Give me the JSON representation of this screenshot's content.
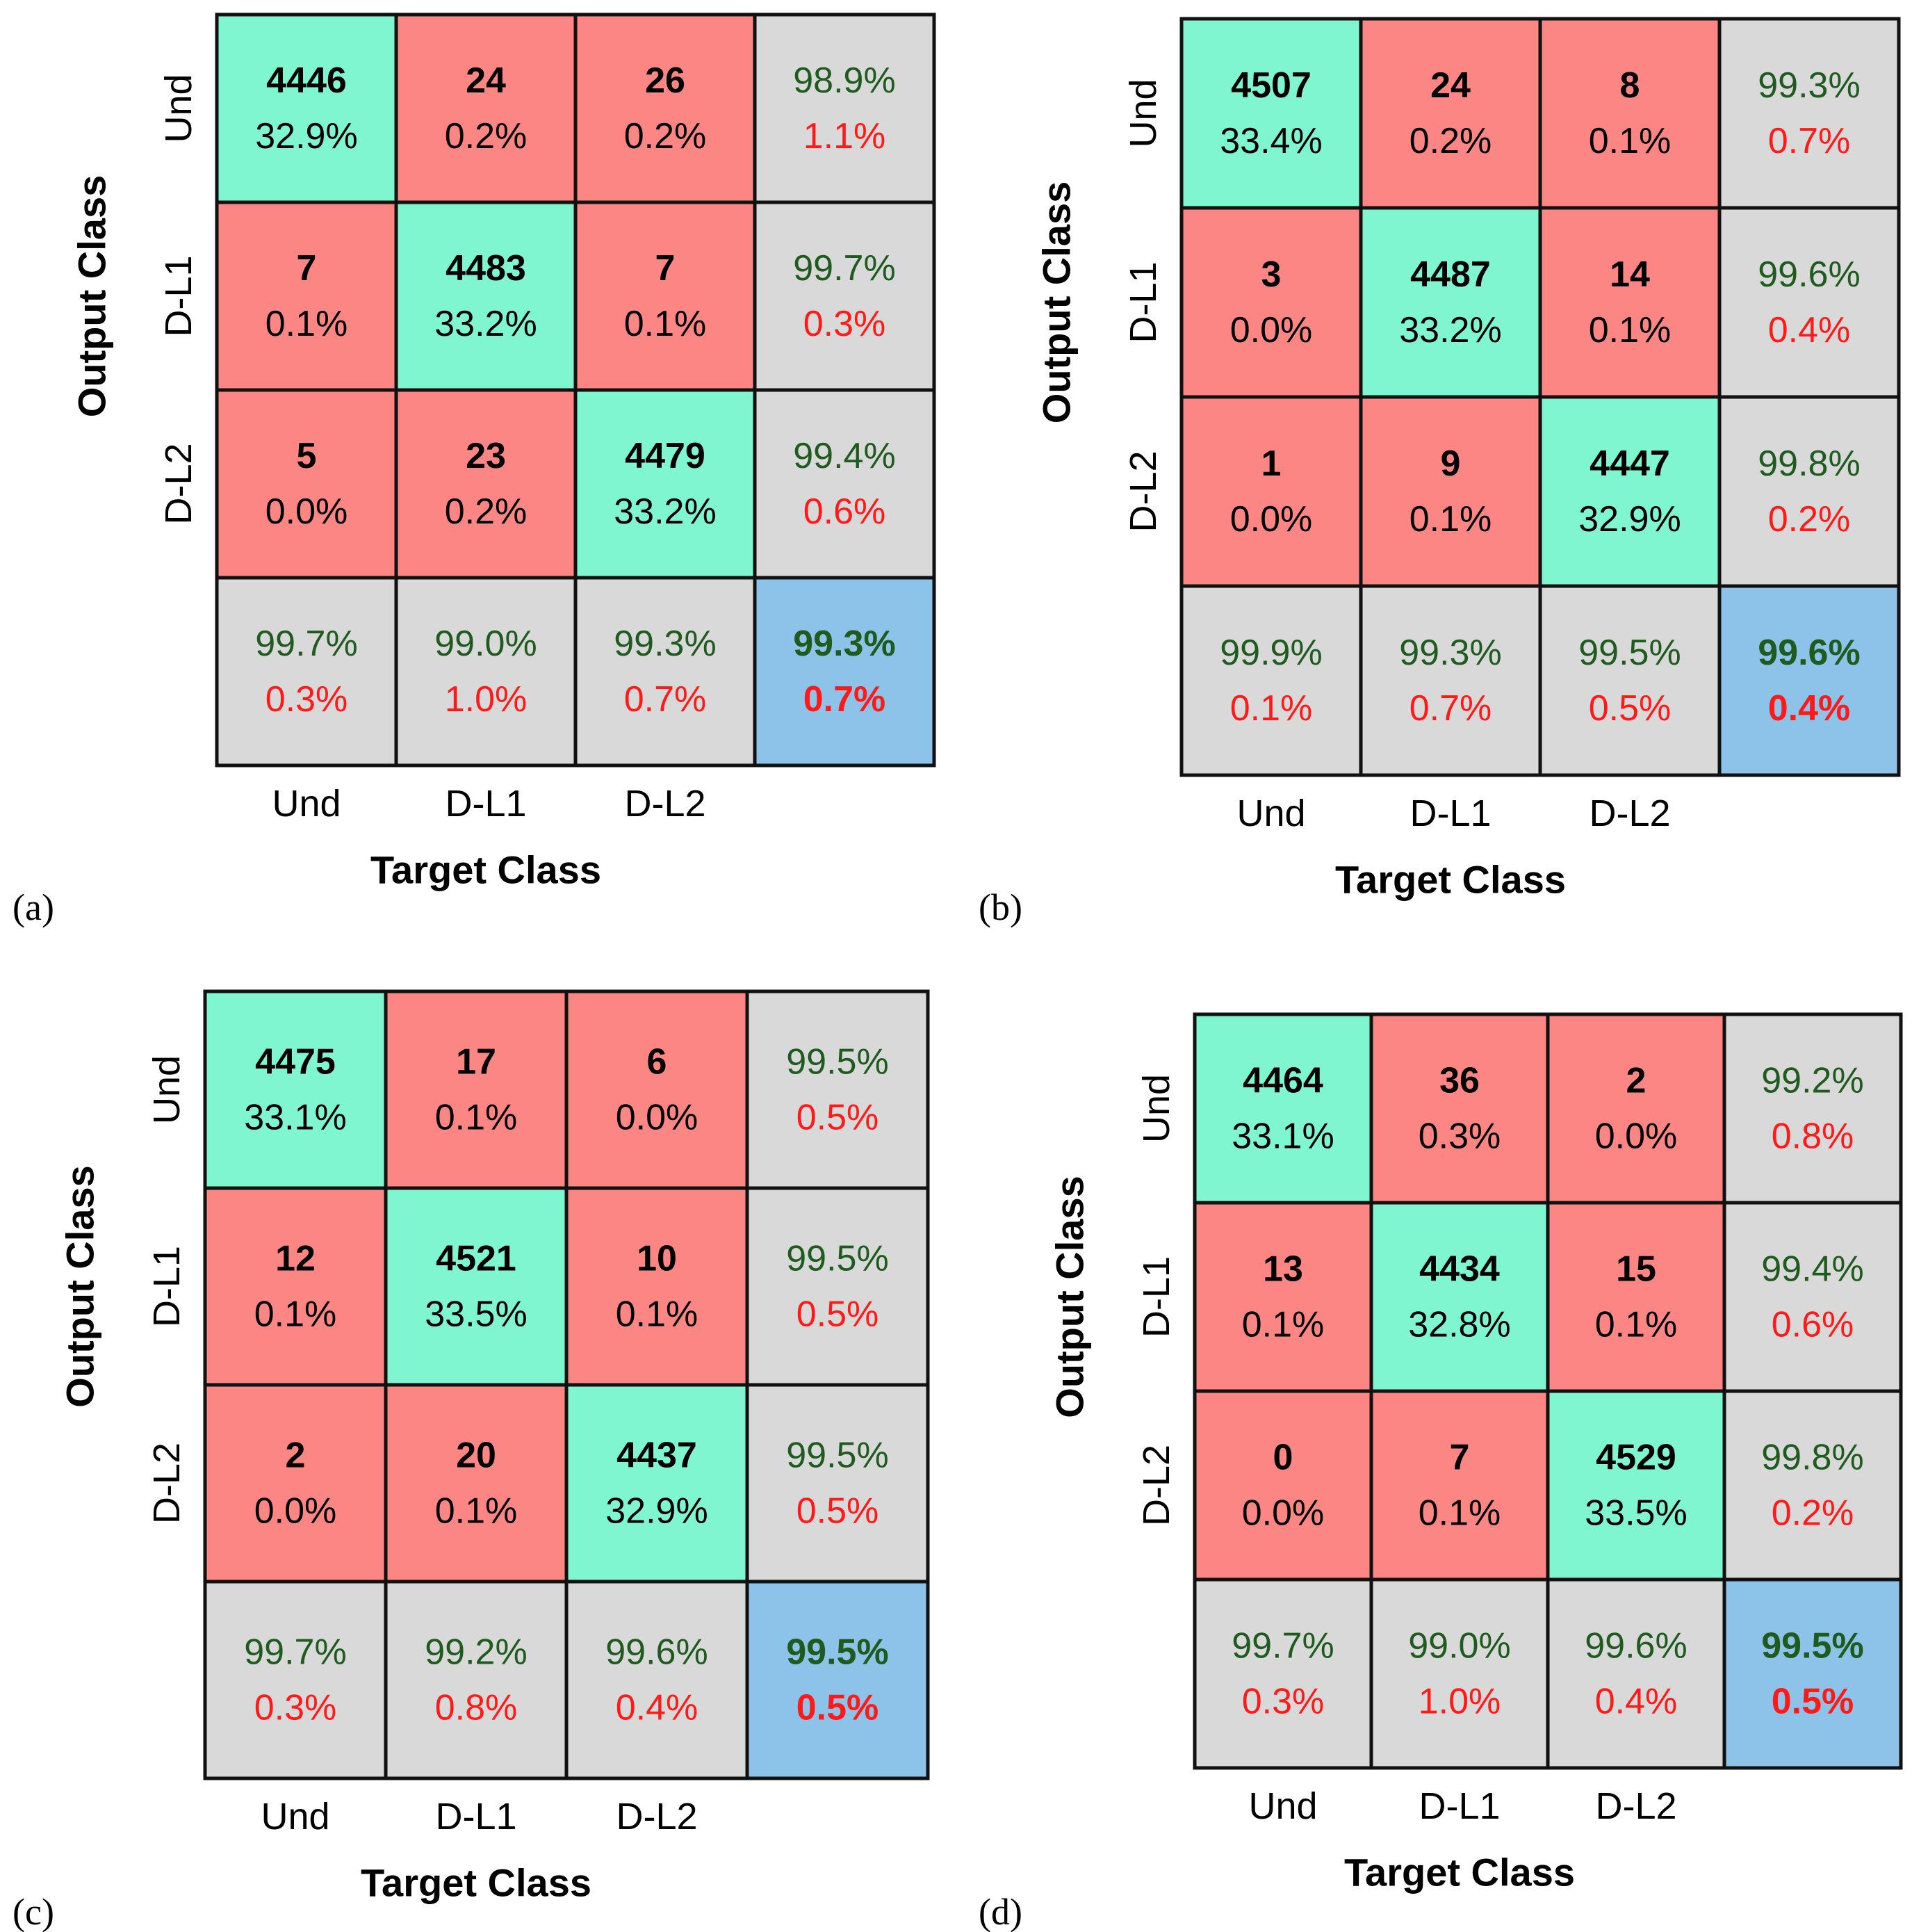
{
  "colors": {
    "correct": "#7FF6CF",
    "error": "#FB8683",
    "summary": "#D9D9D9",
    "overall": "#8DC3E8",
    "good_text": "#1F5A1F",
    "bad_text": "#FF1A1A",
    "count_text": "#000000",
    "grid": "#111111"
  },
  "chart_data": [
    {
      "type": "table",
      "label": "(a)",
      "title": "",
      "xlabel": "Target Class",
      "ylabel": "Output Class",
      "classes": [
        "Und",
        "D-L1",
        "D-L2"
      ],
      "counts": [
        [
          4446,
          24,
          26
        ],
        [
          7,
          4483,
          7
        ],
        [
          5,
          23,
          4479
        ]
      ],
      "cell_pct": [
        [
          "32.9%",
          "0.2%",
          "0.2%"
        ],
        [
          "0.1%",
          "33.2%",
          "0.1%"
        ],
        [
          "0.0%",
          "0.2%",
          "33.2%"
        ]
      ],
      "row_summary": [
        [
          "98.9%",
          "1.1%"
        ],
        [
          "99.7%",
          "0.3%"
        ],
        [
          "99.4%",
          "0.6%"
        ]
      ],
      "col_summary": [
        [
          "99.7%",
          "0.3%"
        ],
        [
          "99.0%",
          "1.0%"
        ],
        [
          "99.3%",
          "0.7%"
        ]
      ],
      "overall": [
        "99.3%",
        "0.7%"
      ]
    },
    {
      "type": "table",
      "label": "(b)",
      "title": "",
      "xlabel": "Target Class",
      "ylabel": "Output Class",
      "classes": [
        "Und",
        "D-L1",
        "D-L2"
      ],
      "counts": [
        [
          4507,
          24,
          8
        ],
        [
          3,
          4487,
          14
        ],
        [
          1,
          9,
          4447
        ]
      ],
      "cell_pct": [
        [
          "33.4%",
          "0.2%",
          "0.1%"
        ],
        [
          "0.0%",
          "33.2%",
          "0.1%"
        ],
        [
          "0.0%",
          "0.1%",
          "32.9%"
        ]
      ],
      "row_summary": [
        [
          "99.3%",
          "0.7%"
        ],
        [
          "99.6%",
          "0.4%"
        ],
        [
          "99.8%",
          "0.2%"
        ]
      ],
      "col_summary": [
        [
          "99.9%",
          "0.1%"
        ],
        [
          "99.3%",
          "0.7%"
        ],
        [
          "99.5%",
          "0.5%"
        ]
      ],
      "overall": [
        "99.6%",
        "0.4%"
      ]
    },
    {
      "type": "table",
      "label": "(c)",
      "title": "",
      "xlabel": "Target Class",
      "ylabel": "Output Class",
      "classes": [
        "Und",
        "D-L1",
        "D-L2"
      ],
      "counts": [
        [
          4475,
          17,
          6
        ],
        [
          12,
          4521,
          10
        ],
        [
          2,
          20,
          4437
        ]
      ],
      "cell_pct": [
        [
          "33.1%",
          "0.1%",
          "0.0%"
        ],
        [
          "0.1%",
          "33.5%",
          "0.1%"
        ],
        [
          "0.0%",
          "0.1%",
          "32.9%"
        ]
      ],
      "row_summary": [
        [
          "99.5%",
          "0.5%"
        ],
        [
          "99.5%",
          "0.5%"
        ],
        [
          "99.5%",
          "0.5%"
        ]
      ],
      "col_summary": [
        [
          "99.7%",
          "0.3%"
        ],
        [
          "99.2%",
          "0.8%"
        ],
        [
          "99.6%",
          "0.4%"
        ]
      ],
      "overall": [
        "99.5%",
        "0.5%"
      ]
    },
    {
      "type": "table",
      "label": "(d)",
      "title": "",
      "xlabel": "Target Class",
      "ylabel": "Output Class",
      "classes": [
        "Und",
        "D-L1",
        "D-L2"
      ],
      "counts": [
        [
          4464,
          36,
          2
        ],
        [
          13,
          4434,
          15
        ],
        [
          0,
          7,
          4529
        ]
      ],
      "cell_pct": [
        [
          "33.1%",
          "0.3%",
          "0.0%"
        ],
        [
          "0.1%",
          "32.8%",
          "0.1%"
        ],
        [
          "0.0%",
          "0.1%",
          "33.5%"
        ]
      ],
      "row_summary": [
        [
          "99.2%",
          "0.8%"
        ],
        [
          "99.4%",
          "0.6%"
        ],
        [
          "99.8%",
          "0.2%"
        ]
      ],
      "col_summary": [
        [
          "99.7%",
          "0.3%"
        ],
        [
          "99.0%",
          "1.0%"
        ],
        [
          "99.6%",
          "0.4%"
        ]
      ],
      "overall": [
        "99.5%",
        "0.5%"
      ]
    }
  ]
}
